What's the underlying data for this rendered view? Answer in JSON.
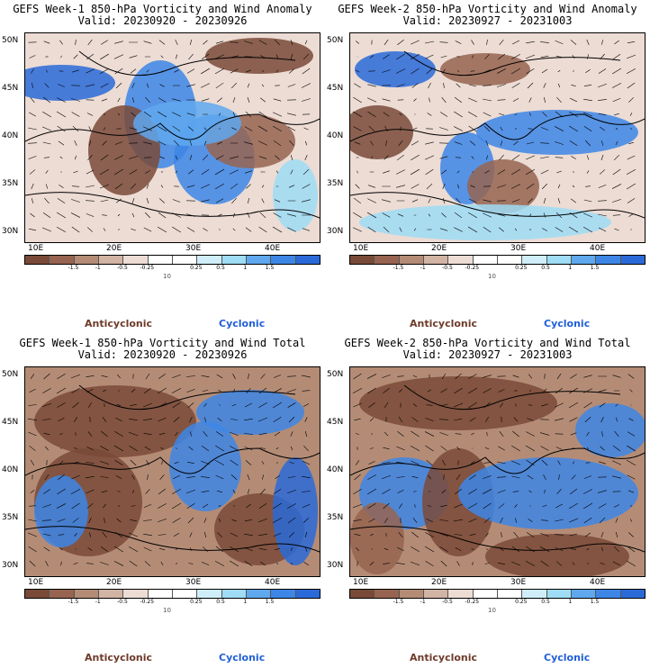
{
  "panels": [
    {
      "title": "GEFS Week-1 850-hPa Vorticity and Wind Anomaly",
      "valid": "Valid: 20230920 - 20230926"
    },
    {
      "title": "GEFS Week-2 850-hPa Vorticity and Wind Anomaly",
      "valid": "Valid: 20230927 - 20231003"
    },
    {
      "title": "GEFS Week-1 850-hPa Vorticity and Wind Total",
      "valid": "Valid: 20230920 - 20230926"
    },
    {
      "title": "GEFS Week-2 850-hPa Vorticity and Wind Total",
      "valid": "Valid: 20230927 - 20231003"
    }
  ],
  "lat_labels": [
    "50N",
    "45N",
    "40N",
    "35N",
    "30N"
  ],
  "lon_labels": [
    "10E",
    "20E",
    "30E",
    "40E"
  ],
  "colorbar": {
    "tick_labels": [
      "-1.5",
      "-1",
      "-0.5",
      "-0.25",
      "0.25",
      "0.5",
      "1",
      "1.5"
    ],
    "units": "10",
    "colors": [
      "#7a4a38",
      "#966450",
      "#b48c76",
      "#d2b4a4",
      "#ecdcd4",
      "#ffffff",
      "#ffffff",
      "#cfeefa",
      "#9fdcf5",
      "#5fa8ee",
      "#3d86e6",
      "#2a6ad8"
    ]
  },
  "legend": {
    "anticyclonic": "Anticyclonic",
    "cyclonic": "Cyclonic",
    "anticyclonic_color": "#6e3a2a",
    "cyclonic_color": "#1f5fd6"
  }
}
